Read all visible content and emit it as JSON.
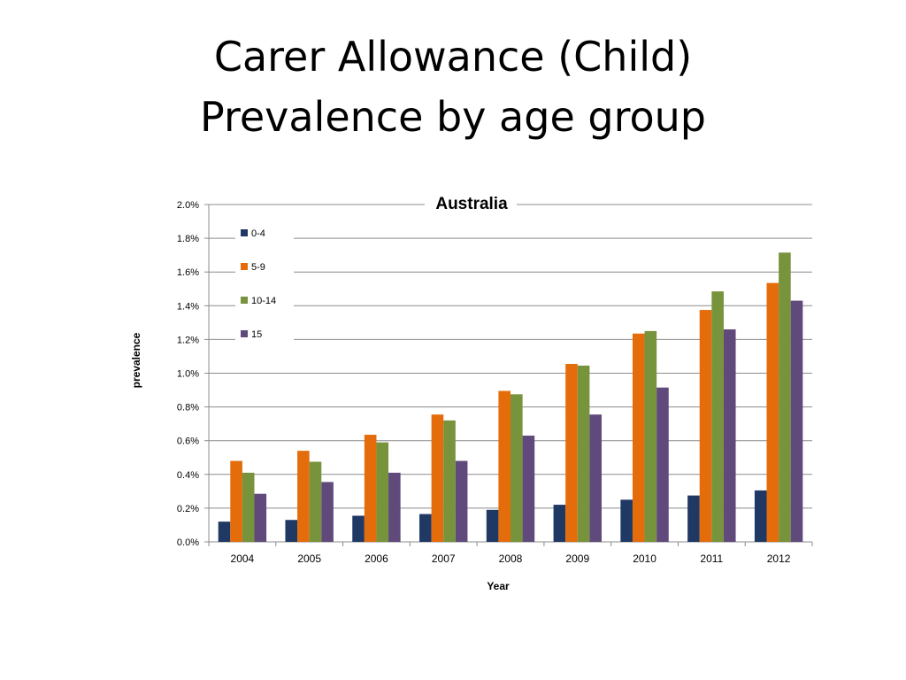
{
  "slide": {
    "title_line1": "Carer Allowance (Child)",
    "title_line2": "Prevalence by age group"
  },
  "chart_data": {
    "type": "bar",
    "title": "Australia",
    "xlabel": "Year",
    "ylabel": "prevalence",
    "categories": [
      "2004",
      "2005",
      "2006",
      "2007",
      "2008",
      "2009",
      "2010",
      "2011",
      "2012"
    ],
    "ylim": [
      0,
      2.0
    ],
    "yticks": [
      "0.0%",
      "0.2%",
      "0.4%",
      "0.6%",
      "0.8%",
      "1.0%",
      "1.2%",
      "1.4%",
      "1.6%",
      "1.8%",
      "2.0%"
    ],
    "y_unit": "percent",
    "grid": true,
    "legend_position": "top-left",
    "series": [
      {
        "name": "0-4",
        "color": "#1f3864",
        "values": [
          0.12,
          0.13,
          0.155,
          0.165,
          0.19,
          0.22,
          0.25,
          0.275,
          0.305
        ]
      },
      {
        "name": "5-9",
        "color": "#e46c0a",
        "values": [
          0.48,
          0.54,
          0.635,
          0.755,
          0.895,
          1.055,
          1.235,
          1.375,
          1.535
        ]
      },
      {
        "name": "10-14",
        "color": "#77933c",
        "values": [
          0.41,
          0.475,
          0.59,
          0.72,
          0.875,
          1.045,
          1.25,
          1.485,
          1.715
        ]
      },
      {
        "name": "15",
        "color": "#604a7b",
        "values": [
          0.285,
          0.355,
          0.41,
          0.48,
          0.63,
          0.755,
          0.915,
          1.26,
          1.43
        ]
      }
    ]
  }
}
